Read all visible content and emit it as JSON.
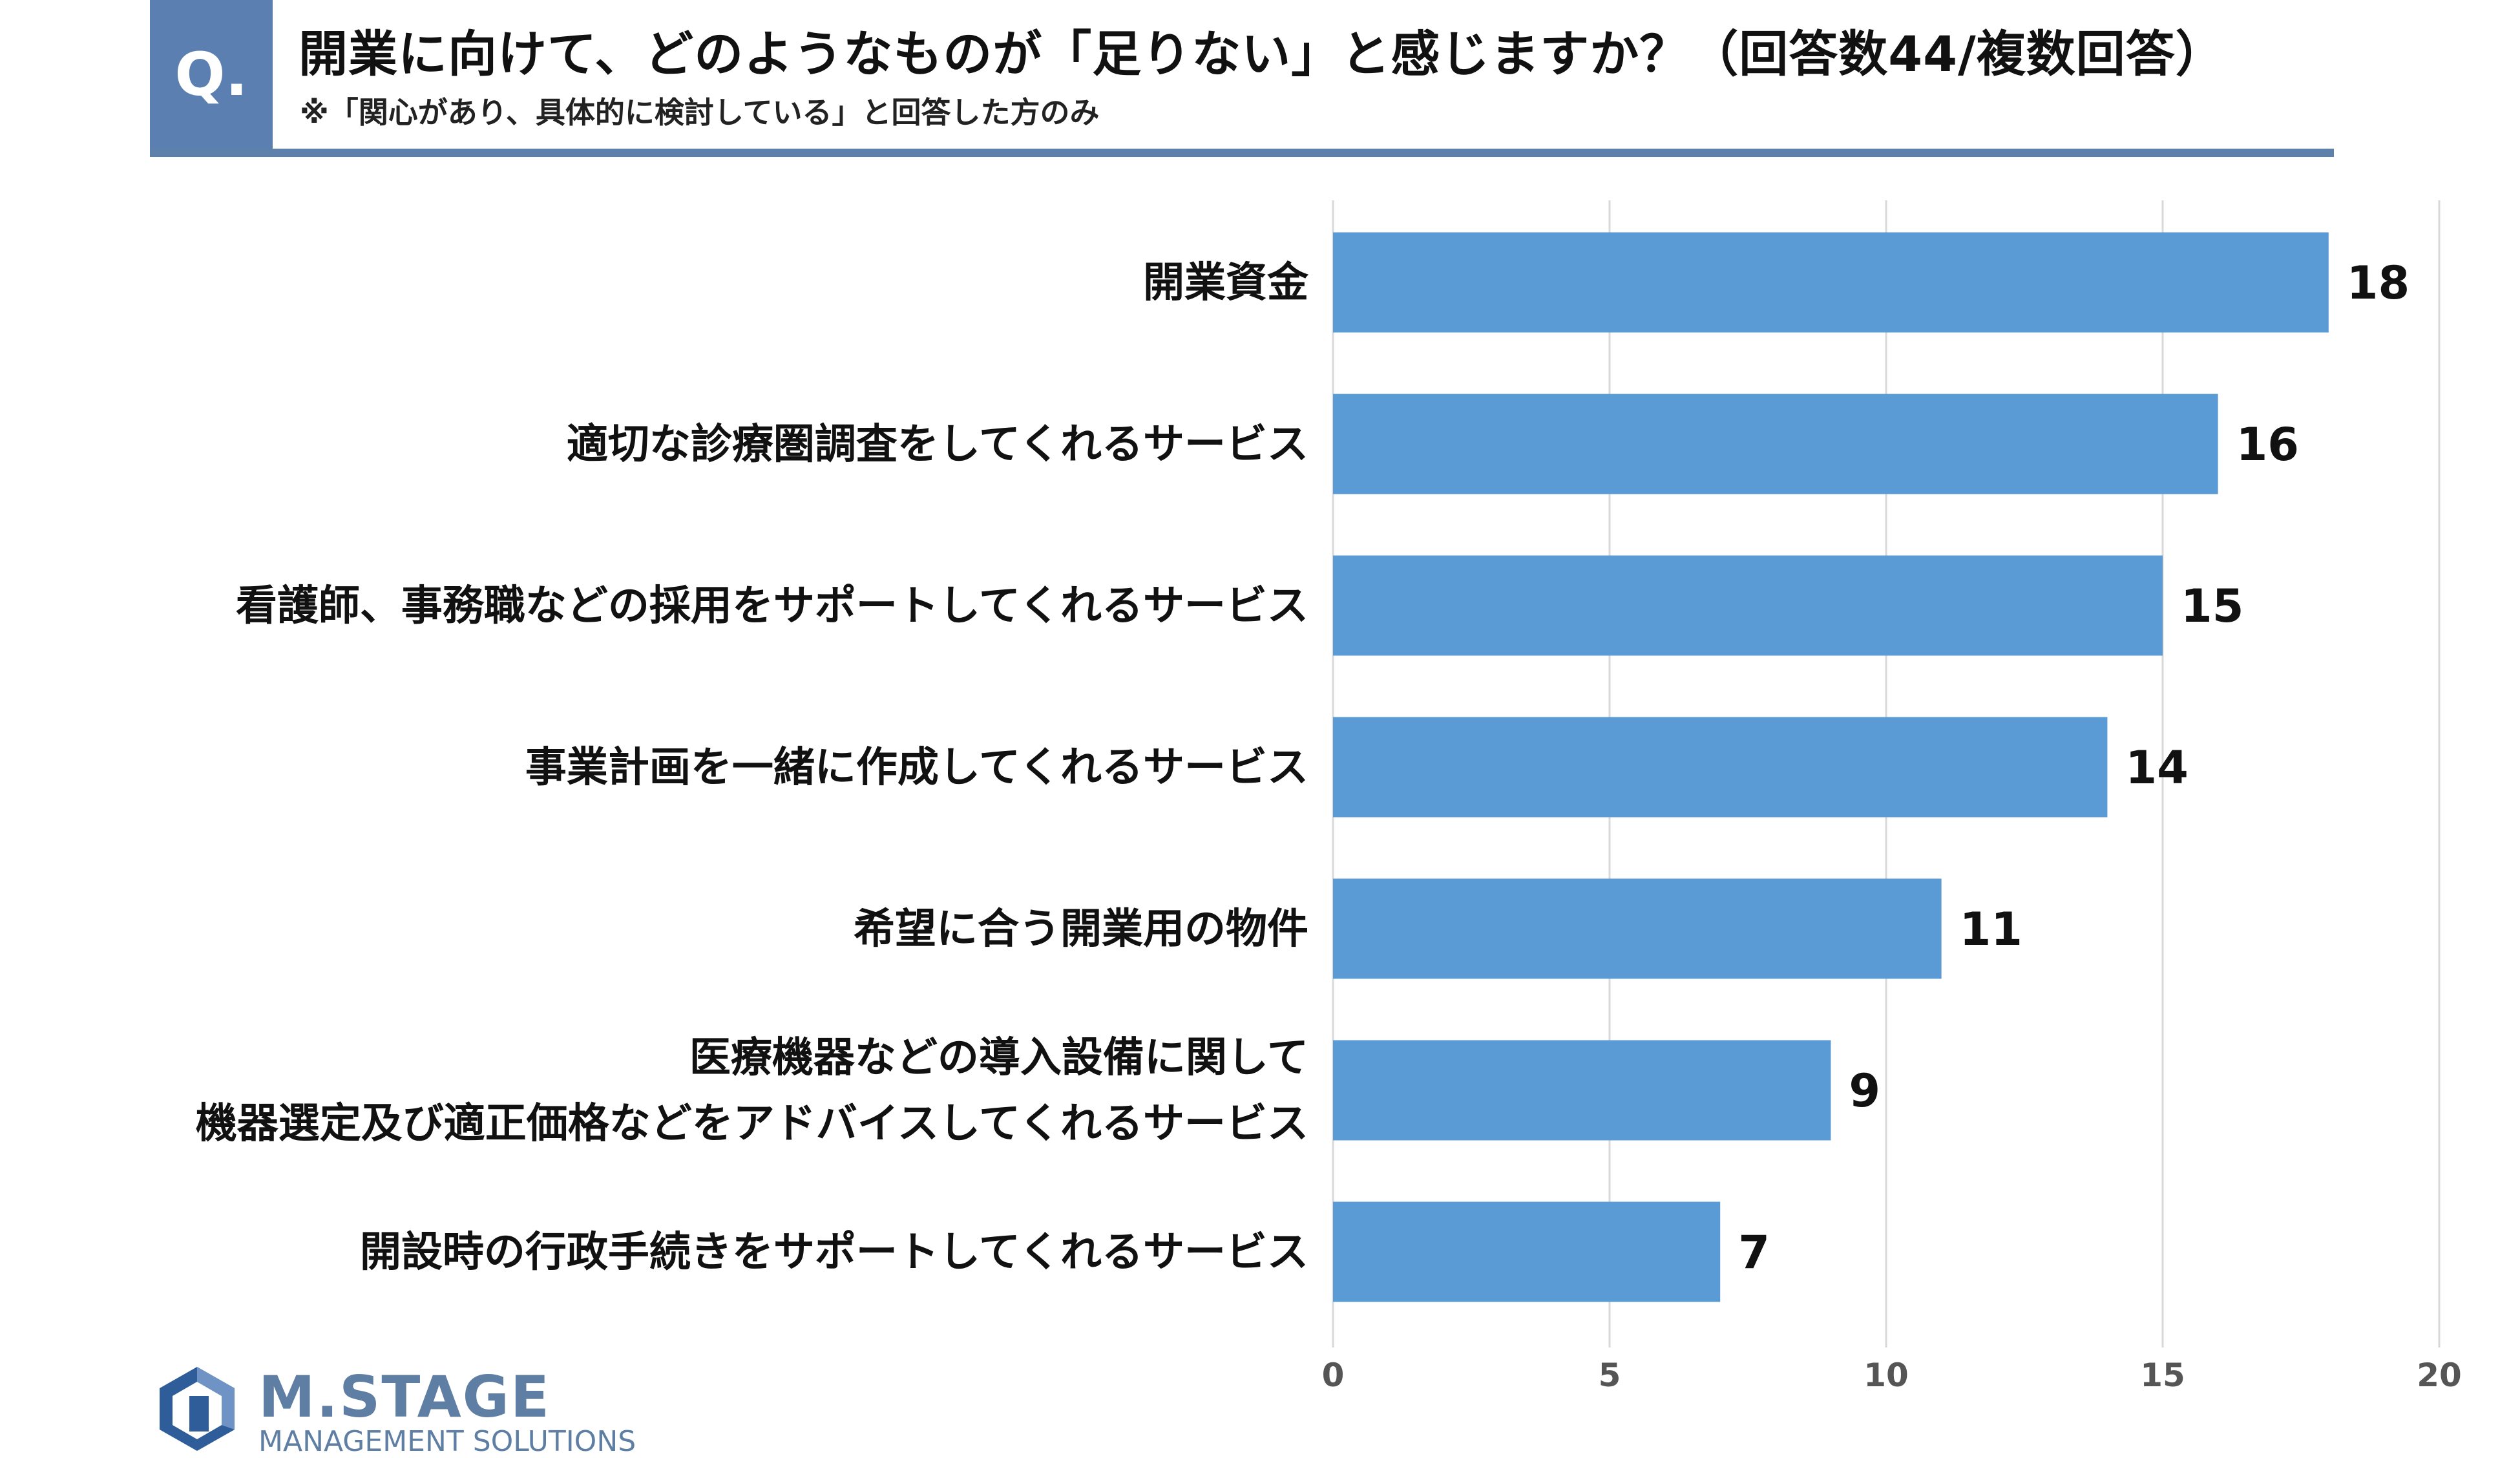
{
  "header": {
    "badge": "Q.",
    "question": "開業に向けて、どのようなものが「足りない」と感じますか？（回答数44/複数回答）",
    "note": "※「関心があり、具体的に検討している」と回答した方のみ"
  },
  "colors": {
    "bar": "#5b9bd5",
    "header_accent": "#5a7fb0",
    "grid": "#d9d9d9",
    "logo": "#5f7ea3"
  },
  "chart_data": {
    "type": "bar",
    "orientation": "horizontal",
    "categories": [
      [
        "開業資金"
      ],
      [
        "適切な診療圏調査をしてくれるサービス"
      ],
      [
        "看護師、事務職などの採用をサポートしてくれるサービス"
      ],
      [
        "事業計画を一緒に作成してくれるサービス"
      ],
      [
        "希望に合う開業用の物件"
      ],
      [
        "医療機器などの導入設備に関して",
        "機器選定及び適正価格などをアドバイスしてくれるサービス"
      ],
      [
        "開設時の行政手続きをサポートしてくれるサービス"
      ]
    ],
    "values": [
      18,
      16,
      15,
      14,
      11,
      9,
      7
    ],
    "xlim": [
      0,
      20
    ],
    "xticks": [
      0,
      5,
      10,
      15,
      20
    ],
    "grid": true,
    "data_labels": true
  },
  "logo": {
    "name": "M.STAGE",
    "tagline": "MANAGEMENT SOLUTIONS"
  }
}
